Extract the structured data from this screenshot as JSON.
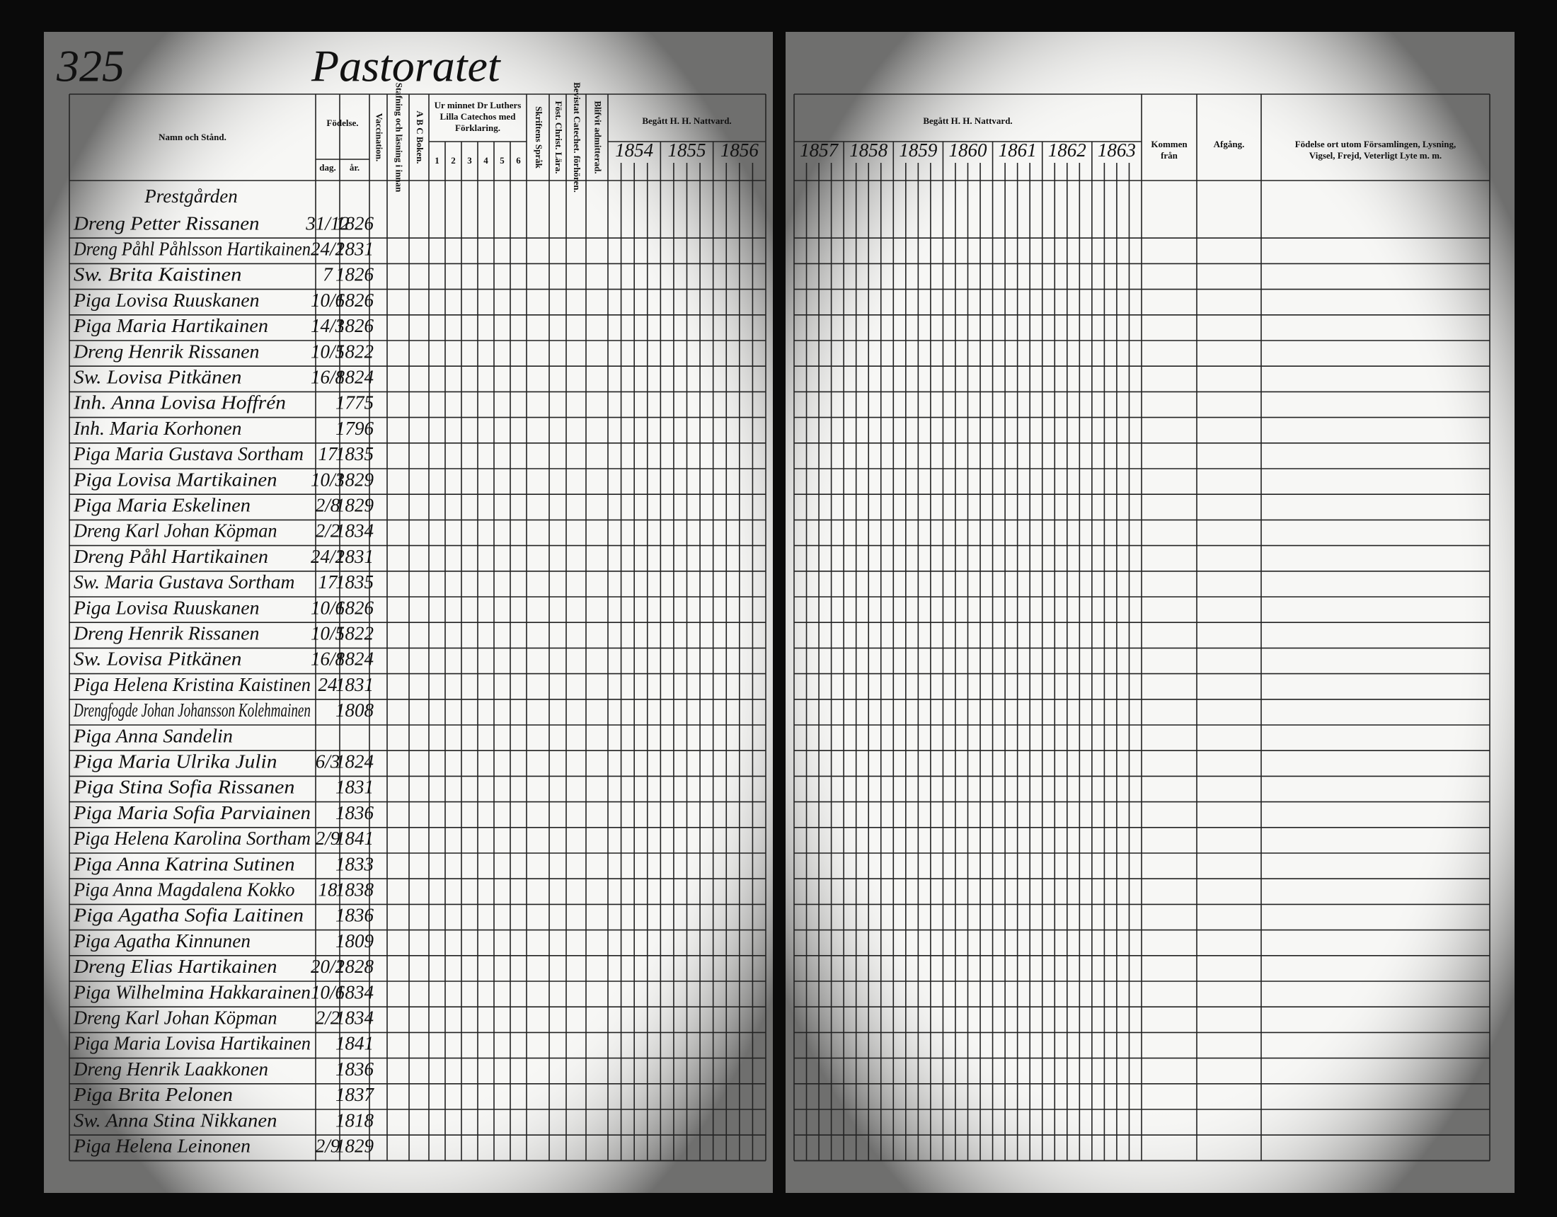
{
  "page_number": "325",
  "title": "Pastoratet",
  "left_headers": {
    "name": "Namn och Stånd.",
    "birth": "Födelse.",
    "day": "dag.",
    "year": "år.",
    "vaccination": "Vaccination.",
    "reading": "Stafning och läsning i innan",
    "abc": "A B C Boken.",
    "catechism": [
      "Ur minnet Dr Luthers",
      "Lilla Catechos med",
      "Förklaring."
    ],
    "catechism_parts": [
      "1",
      "2",
      "3",
      "4",
      "5",
      "6"
    ],
    "scripture": "Skriftens Språk",
    "christian": "Föst. Christ. Lära.",
    "examinations": "Bevistat Catechet. förhören.",
    "admitted": "Blifvit admitterad.",
    "communion": "Begått H. H. Nattvard.",
    "communion_years": [
      "1854",
      "1855",
      "1856"
    ]
  },
  "right_headers": {
    "communion": "Begått H. H. Nattvard.",
    "communion_years": [
      "1857",
      "1858",
      "1859",
      "1860",
      "1861",
      "1862",
      "1863"
    ],
    "arrived": [
      "Kommen",
      "från"
    ],
    "departed": "Afgång.",
    "notes": [
      "Födelse ort utom Församlingen, Lysning,",
      "Vigsel, Frejd, Veterligt Lyte m. m."
    ]
  },
  "section": "Prestgården",
  "rows": [
    {
      "name": "Dreng Petter Rissanen",
      "day": "31/12",
      "year": "1826"
    },
    {
      "name": "Dreng Påhl Påhlsson Hartikainen",
      "day": "24/2",
      "year": "1831"
    },
    {
      "name": "Sw. Brita Kaistinen",
      "day": "7",
      "year": "1826"
    },
    {
      "name": "Piga Lovisa Ruuskanen",
      "day": "10/6",
      "year": "1826"
    },
    {
      "name": "Piga Maria Hartikainen",
      "day": "14/3",
      "year": "1826"
    },
    {
      "name": "Dreng Henrik Rissanen",
      "day": "10/5",
      "year": "1822"
    },
    {
      "name": "Sw. Lovisa Pitkänen",
      "day": "16/8",
      "year": "1824"
    },
    {
      "name": "Inh. Anna Lovisa Hoffrén",
      "year": "1775"
    },
    {
      "name": "Inh. Maria Korhonen",
      "year": "1796"
    },
    {
      "name": "Piga Maria Gustava Sortham",
      "day": "17",
      "year": "1835"
    },
    {
      "name": "Piga Lovisa Martikainen",
      "day": "10/3",
      "year": "1829"
    },
    {
      "name": "Piga Maria Eskelinen",
      "day": "2/8",
      "year": "1829"
    },
    {
      "name": "Dreng Karl Johan Köpman",
      "day": "2/2",
      "year": "1834"
    },
    {
      "name": "Dreng Påhl Hartikainen",
      "day": "24/2",
      "year": "1831"
    },
    {
      "name": "Sw. Maria Gustava Sortham",
      "day": "17",
      "year": "1835"
    },
    {
      "name": "Piga Lovisa Ruuskanen",
      "day": "10/6",
      "year": "1826"
    },
    {
      "name": "Dreng Henrik Rissanen",
      "day": "10/5",
      "year": "1822"
    },
    {
      "name": "Sw. Lovisa Pitkänen",
      "day": "16/8",
      "year": "1824"
    },
    {
      "name": "Piga Helena Kristina Kaistinen",
      "day": "24",
      "year": "1831"
    },
    {
      "name": "Drengfogde Johan Johansson Kolehmainen",
      "year": "1808"
    },
    {
      "name": "Piga Anna Sandelin"
    },
    {
      "name": "Piga Maria Ulrika Julin",
      "day": "6/3",
      "year": "1824"
    },
    {
      "name": "Piga Stina Sofia Rissanen",
      "year": "1831"
    },
    {
      "name": "Piga Maria Sofia Parviainen",
      "year": "1836"
    },
    {
      "name": "Piga Helena Karolina Sortham",
      "day": "2/9",
      "year": "1841"
    },
    {
      "name": "Piga Anna Katrina Sutinen",
      "year": "1833"
    },
    {
      "name": "Piga Anna Magdalena Kokko",
      "day": "18",
      "year": "1838"
    },
    {
      "name": "Piga Agatha Sofia Laitinen",
      "year": "1836"
    },
    {
      "name": "Piga Agatha Kinnunen",
      "year": "1809"
    },
    {
      "name": "Dreng Elias Hartikainen",
      "day": "20/2",
      "year": "1828"
    },
    {
      "name": "Piga Wilhelmina Hakkarainen",
      "day": "10/6",
      "year": "1834"
    },
    {
      "name": "Dreng Karl Johan Köpman",
      "day": "2/2",
      "year": "1834"
    },
    {
      "name": "Piga Maria Lovisa Hartikainen",
      "year": "1841"
    },
    {
      "name": "Dreng Henrik Laakkonen",
      "year": "1836"
    },
    {
      "name": "Piga Brita Pelonen",
      "year": "1837"
    },
    {
      "name": "Sw. Anna Stina Nikkanen",
      "year": "1818"
    },
    {
      "name": "Piga Helena Leinonen",
      "day": "2/9",
      "year": "1829"
    }
  ]
}
